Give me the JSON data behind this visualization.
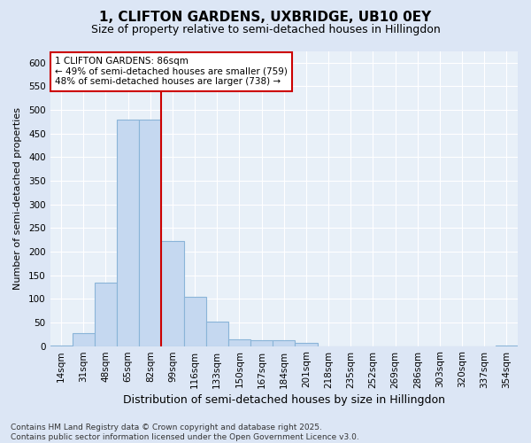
{
  "title1": "1, CLIFTON GARDENS, UXBRIDGE, UB10 0EY",
  "title2": "Size of property relative to semi-detached houses in Hillingdon",
  "xlabel": "Distribution of semi-detached houses by size in Hillingdon",
  "ylabel": "Number of semi-detached properties",
  "categories": [
    "14sqm",
    "31sqm",
    "48sqm",
    "65sqm",
    "82sqm",
    "99sqm",
    "116sqm",
    "133sqm",
    "150sqm",
    "167sqm",
    "184sqm",
    "201sqm",
    "218sqm",
    "235sqm",
    "252sqm",
    "269sqm",
    "286sqm",
    "303sqm",
    "320sqm",
    "337sqm",
    "354sqm"
  ],
  "values": [
    2,
    27,
    135,
    480,
    480,
    222,
    105,
    52,
    15,
    13,
    13,
    7,
    0,
    0,
    0,
    0,
    0,
    0,
    0,
    0,
    2
  ],
  "bar_color": "#c5d8f0",
  "bar_edge_color": "#8ab4d8",
  "vline_index": 4.5,
  "vline_color": "#cc0000",
  "annotation_text": "1 CLIFTON GARDENS: 86sqm\n← 49% of semi-detached houses are smaller (759)\n48% of semi-detached houses are larger (738) →",
  "annotation_box_color": "#ffffff",
  "annotation_box_edge": "#cc0000",
  "ylim": [
    0,
    625
  ],
  "yticks": [
    0,
    50,
    100,
    150,
    200,
    250,
    300,
    350,
    400,
    450,
    500,
    550,
    600
  ],
  "footer": "Contains HM Land Registry data © Crown copyright and database right 2025.\nContains public sector information licensed under the Open Government Licence v3.0.",
  "bg_color": "#dce6f5",
  "plot_bg_color": "#e8f0f8",
  "grid_color": "#ffffff",
  "title1_fontsize": 11,
  "title2_fontsize": 9,
  "xlabel_fontsize": 9,
  "ylabel_fontsize": 8,
  "tick_fontsize": 7.5,
  "footer_fontsize": 6.5
}
